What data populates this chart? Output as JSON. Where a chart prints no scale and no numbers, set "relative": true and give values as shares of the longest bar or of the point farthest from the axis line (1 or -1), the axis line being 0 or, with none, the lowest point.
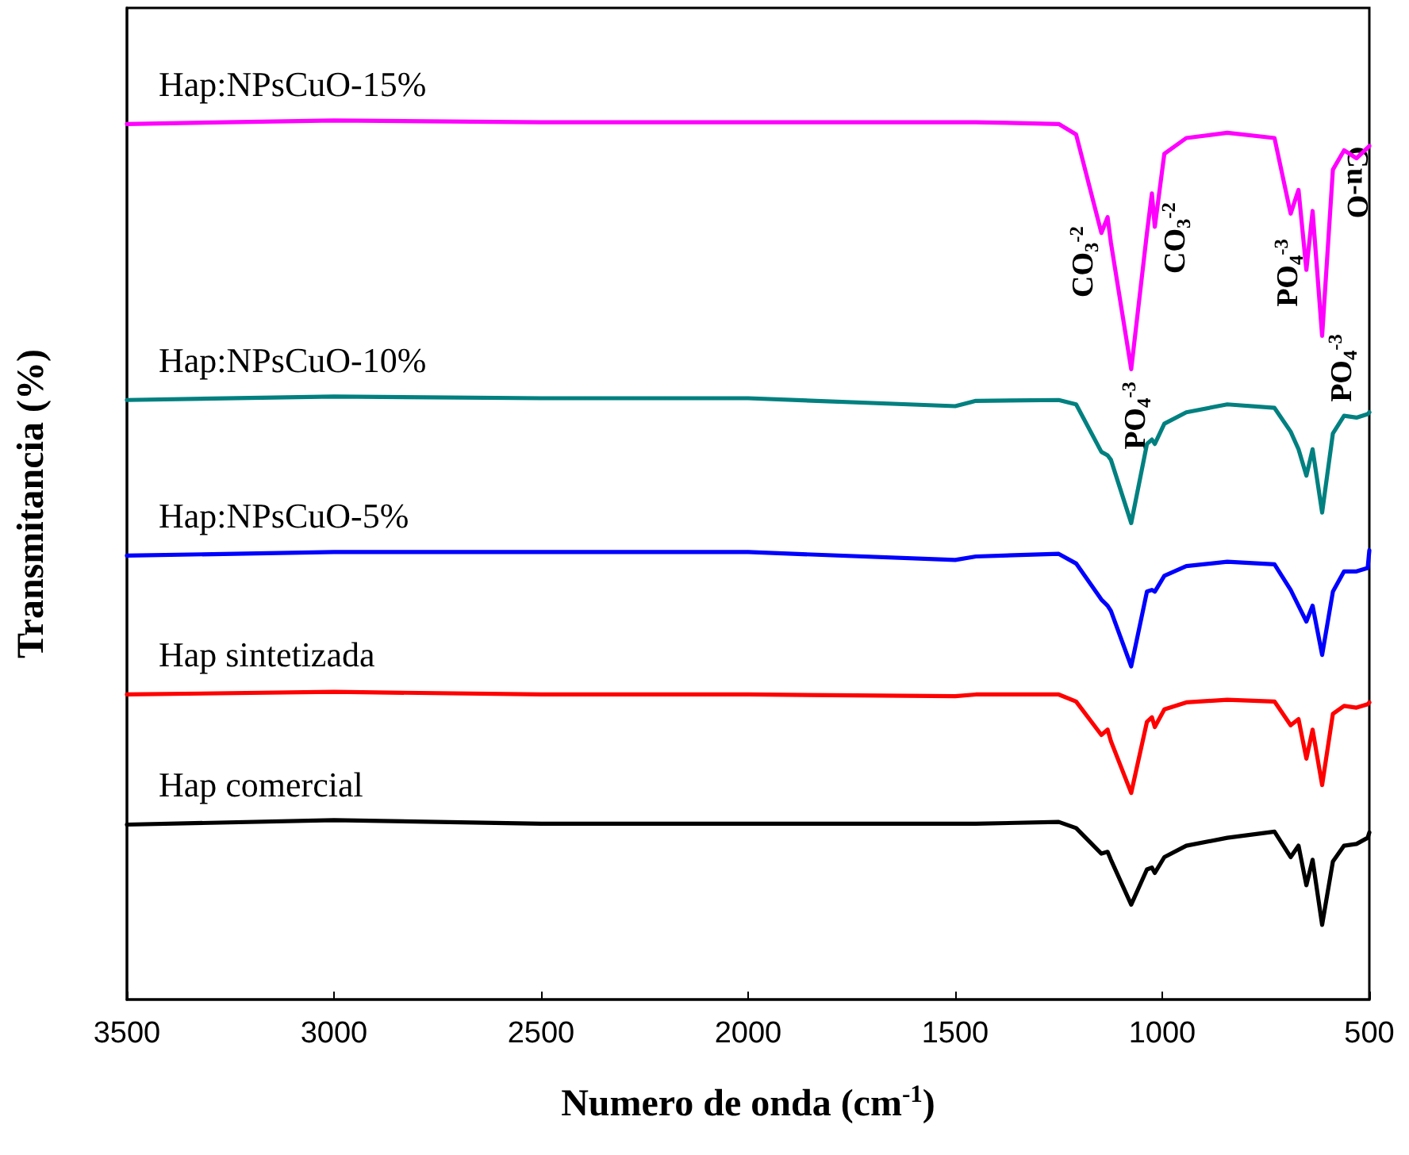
{
  "chart_data": {
    "type": "line",
    "relative": true,
    "xlabel": "Numero de onda (cm$^{-1}$)",
    "ylabel": "Transmitancia (%)",
    "xlim": [
      3500,
      500
    ],
    "xticks": [
      3500,
      3000,
      2500,
      2000,
      1500,
      1000,
      500
    ],
    "grid": false,
    "legend": false,
    "marker": "none",
    "line_style": "solid",
    "x": [
      3500,
      3000,
      2500,
      2000,
      1500,
      1450,
      1250,
      1208,
      1147,
      1132,
      1124,
      1075,
      1037,
      1025,
      1018,
      995,
      942,
      843,
      729,
      690,
      671,
      652,
      637,
      614,
      588,
      561,
      531,
      504,
      500
    ],
    "series": [
      {
        "name": "Hap:NPsCuO-15%",
        "color": "#ff00ff",
        "values": [
          0.996,
          1.0,
          0.998,
          0.998,
          0.998,
          0.998,
          0.996,
          0.984,
          0.872,
          0.89,
          0.861,
          0.717,
          0.872,
          0.917,
          0.879,
          0.962,
          0.98,
          0.986,
          0.98,
          0.894,
          0.921,
          0.83,
          0.897,
          0.755,
          0.944,
          0.966,
          0.957,
          0.969,
          0.971
        ]
      },
      {
        "name": "Hap:NPsCuO-10%",
        "color": "#008080",
        "values": [
          0.682,
          0.686,
          0.684,
          0.684,
          0.675,
          0.681,
          0.682,
          0.677,
          0.623,
          0.619,
          0.614,
          0.542,
          0.632,
          0.637,
          0.632,
          0.655,
          0.668,
          0.677,
          0.673,
          0.646,
          0.626,
          0.596,
          0.626,
          0.554,
          0.644,
          0.664,
          0.662,
          0.666,
          0.668
        ]
      },
      {
        "name": "Hap:NPsCuO-5%",
        "color": "#0000ff",
        "values": [
          0.505,
          0.509,
          0.509,
          0.509,
          0.5,
          0.504,
          0.507,
          0.496,
          0.455,
          0.448,
          0.442,
          0.379,
          0.464,
          0.466,
          0.464,
          0.482,
          0.493,
          0.498,
          0.495,
          0.466,
          0.448,
          0.43,
          0.448,
          0.392,
          0.464,
          0.487,
          0.487,
          0.491,
          0.511
        ]
      },
      {
        "name": "Hap sintetizada",
        "color": "#ff0000",
        "values": [
          0.347,
          0.35,
          0.347,
          0.347,
          0.345,
          0.347,
          0.347,
          0.339,
          0.301,
          0.307,
          0.294,
          0.235,
          0.316,
          0.321,
          0.31,
          0.33,
          0.338,
          0.341,
          0.339,
          0.312,
          0.319,
          0.274,
          0.307,
          0.244,
          0.325,
          0.334,
          0.332,
          0.336,
          0.338
        ]
      },
      {
        "name": "Hap comercial",
        "color": "#000000",
        "values": [
          0.199,
          0.204,
          0.2,
          0.2,
          0.2,
          0.2,
          0.202,
          0.195,
          0.166,
          0.168,
          0.159,
          0.108,
          0.148,
          0.15,
          0.144,
          0.162,
          0.175,
          0.184,
          0.191,
          0.162,
          0.175,
          0.13,
          0.159,
          0.085,
          0.157,
          0.175,
          0.177,
          0.184,
          0.19
        ]
      }
    ],
    "annotations": [
      "CO$_{3}$$^{-2}$",
      "CO$_{3}$$^{-2}$",
      "PO$_{4}$$^{-3}$",
      "PO$_{4}$$^{-3}$",
      "PO$_{4}$$^{-3}$",
      "Cu-O"
    ]
  }
}
